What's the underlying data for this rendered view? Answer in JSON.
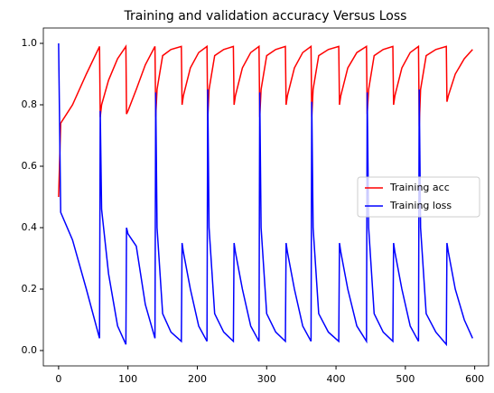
{
  "chart_data": {
    "type": "line",
    "title": "Training and validation accuracy Versus Loss",
    "x": [
      0,
      3,
      20,
      40,
      59,
      60,
      62,
      72,
      85,
      97,
      98,
      100,
      112,
      125,
      139,
      140,
      142,
      150,
      162,
      177,
      178,
      180,
      190,
      202,
      214,
      215,
      217,
      225,
      238,
      252,
      253,
      255,
      265,
      277,
      289,
      290,
      292,
      300,
      313,
      327,
      328,
      330,
      340,
      352,
      364,
      365,
      367,
      375,
      389,
      404,
      405,
      407,
      417,
      430,
      444,
      445,
      447,
      455,
      468,
      482,
      483,
      485,
      495,
      507,
      519,
      520,
      522,
      530,
      544,
      559,
      560,
      562,
      572,
      585,
      597
    ],
    "series": [
      {
        "name": "Training acc",
        "color": "#ff0000",
        "values": [
          0.5,
          0.74,
          0.8,
          0.9,
          0.99,
          0.76,
          0.8,
          0.88,
          0.95,
          0.99,
          0.77,
          0.78,
          0.85,
          0.93,
          0.99,
          0.76,
          0.85,
          0.96,
          0.98,
          0.99,
          0.8,
          0.83,
          0.92,
          0.97,
          0.99,
          0.75,
          0.85,
          0.96,
          0.98,
          0.99,
          0.8,
          0.83,
          0.92,
          0.97,
          0.99,
          0.76,
          0.85,
          0.96,
          0.98,
          0.99,
          0.8,
          0.83,
          0.92,
          0.97,
          0.99,
          0.76,
          0.85,
          0.96,
          0.98,
          0.99,
          0.8,
          0.83,
          0.92,
          0.97,
          0.99,
          0.77,
          0.85,
          0.96,
          0.98,
          0.99,
          0.8,
          0.83,
          0.92,
          0.97,
          0.99,
          0.73,
          0.85,
          0.96,
          0.98,
          0.99,
          0.81,
          0.83,
          0.9,
          0.95,
          0.98
        ]
      },
      {
        "name": "Training loss",
        "color": "#0000ff",
        "values": [
          1.0,
          0.45,
          0.36,
          0.2,
          0.04,
          0.78,
          0.46,
          0.25,
          0.08,
          0.02,
          0.4,
          0.38,
          0.34,
          0.15,
          0.04,
          0.84,
          0.4,
          0.12,
          0.06,
          0.03,
          0.35,
          0.32,
          0.2,
          0.08,
          0.03,
          0.85,
          0.4,
          0.12,
          0.06,
          0.03,
          0.35,
          0.32,
          0.2,
          0.08,
          0.03,
          0.84,
          0.4,
          0.12,
          0.06,
          0.03,
          0.35,
          0.32,
          0.2,
          0.08,
          0.03,
          0.81,
          0.4,
          0.12,
          0.06,
          0.03,
          0.35,
          0.32,
          0.2,
          0.08,
          0.03,
          0.84,
          0.4,
          0.12,
          0.06,
          0.03,
          0.35,
          0.32,
          0.2,
          0.08,
          0.03,
          0.85,
          0.4,
          0.12,
          0.06,
          0.02,
          0.35,
          0.32,
          0.2,
          0.1,
          0.04
        ]
      }
    ],
    "xlim": [
      -22,
      620
    ],
    "xticks": [
      0,
      100,
      200,
      300,
      400,
      500,
      600
    ],
    "ylim": [
      -0.05,
      1.05
    ],
    "yticks": [
      {
        "value": 0,
        "label": "0.0"
      },
      {
        "value": 0.2,
        "label": "0.2"
      },
      {
        "value": 0.4,
        "label": "0.4"
      },
      {
        "value": 0.6,
        "label": "0.6"
      },
      {
        "value": 0.8,
        "label": "0.8"
      },
      {
        "value": 1,
        "label": "1.0"
      }
    ],
    "legend": "center right"
  }
}
